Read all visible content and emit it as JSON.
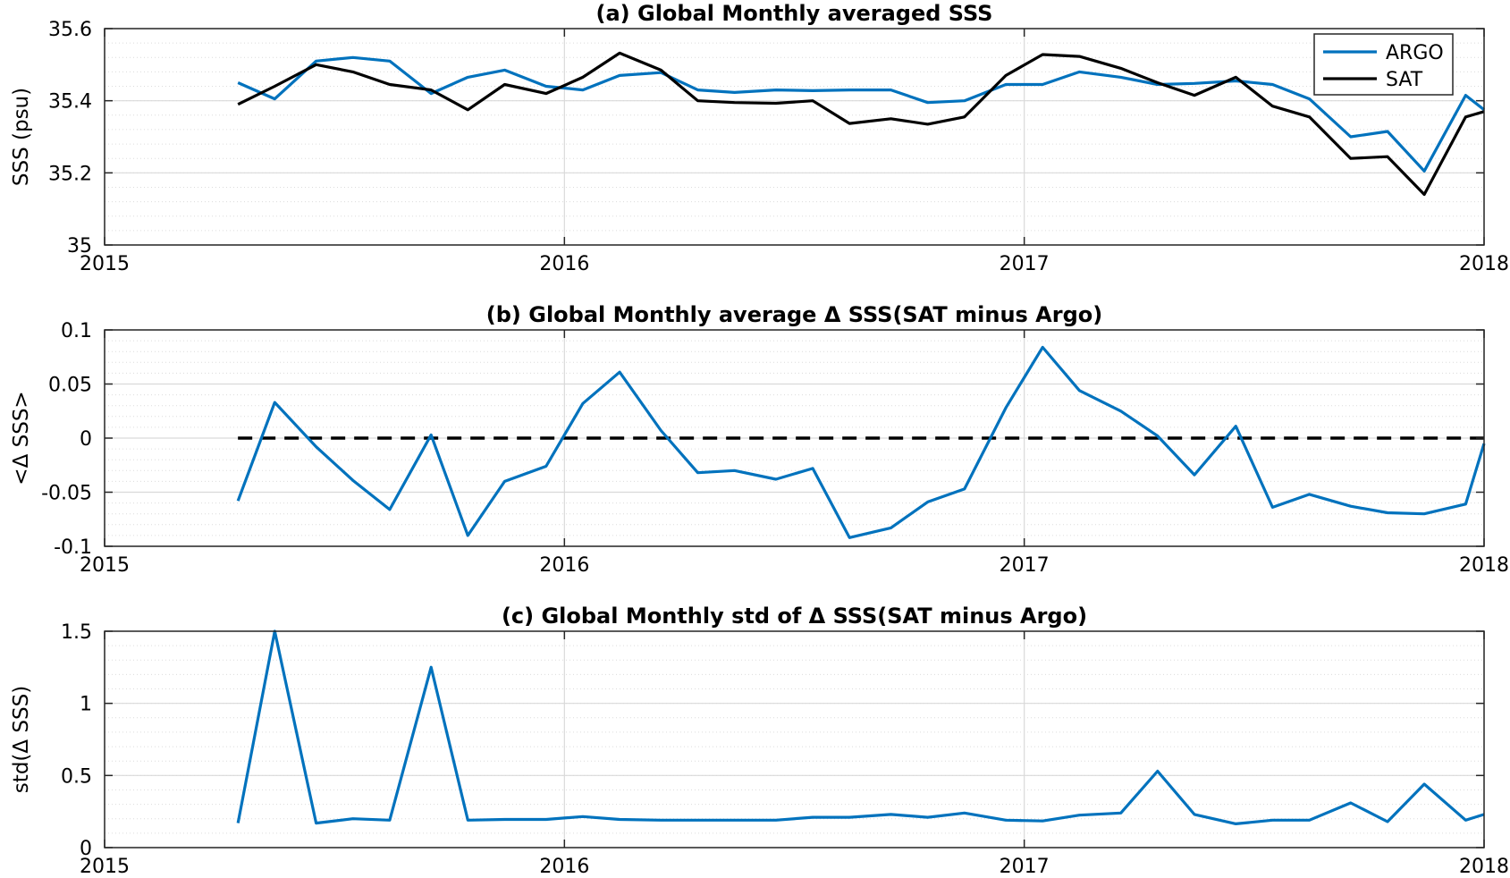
{
  "chart_data": [
    {
      "type": "line",
      "title": "(a) Global Monthly averaged SSS",
      "xlabel": "",
      "ylabel": "SSS (psu)",
      "xlim": [
        2015,
        2018
      ],
      "ylim": [
        35,
        35.6
      ],
      "xticks": [
        "2015",
        "2016",
        "2017",
        "2018"
      ],
      "yticks": [
        "35",
        "35.2",
        "35.4",
        "35.6"
      ],
      "grid": true,
      "legend": "top-right",
      "x": [
        2015.29,
        2015.37,
        2015.46,
        2015.54,
        2015.62,
        2015.71,
        2015.79,
        2015.87,
        2015.96,
        2016.04,
        2016.12,
        2016.21,
        2016.29,
        2016.37,
        2016.46,
        2016.54,
        2016.62,
        2016.71,
        2016.79,
        2016.87,
        2016.96,
        2017.04,
        2017.12,
        2017.21,
        2017.29,
        2017.37,
        2017.46,
        2017.54,
        2017.62,
        2017.71,
        2017.79,
        2017.87,
        2017.96,
        2018.0
      ],
      "series": [
        {
          "name": "ARGO",
          "color": "#0072bd",
          "values": [
            35.45,
            35.405,
            35.51,
            35.52,
            35.51,
            35.42,
            35.465,
            35.485,
            35.44,
            35.43,
            35.47,
            35.478,
            35.43,
            35.423,
            35.43,
            35.428,
            35.43,
            35.43,
            35.395,
            35.4,
            35.445,
            35.445,
            35.48,
            35.465,
            35.445,
            35.448,
            35.455,
            35.445,
            35.405,
            35.3,
            35.315,
            35.205,
            35.415,
            35.375
          ]
        },
        {
          "name": "SAT",
          "color": "#000000",
          "values": [
            35.39,
            35.44,
            35.5,
            35.48,
            35.445,
            35.43,
            35.375,
            35.445,
            35.42,
            35.465,
            35.532,
            35.485,
            35.4,
            35.395,
            35.393,
            35.4,
            35.337,
            35.35,
            35.335,
            35.355,
            35.47,
            35.528,
            35.523,
            35.49,
            35.45,
            35.415,
            35.465,
            35.385,
            35.355,
            35.24,
            35.245,
            35.14,
            35.355,
            35.37
          ]
        }
      ]
    },
    {
      "type": "line",
      "title": "(b) Global Monthly average Δ SSS(SAT minus Argo)",
      "xlabel": "",
      "ylabel": "<Δ SSS>",
      "xlim": [
        2015,
        2018
      ],
      "ylim": [
        -0.1,
        0.1
      ],
      "xticks": [
        "2015",
        "2016",
        "2017",
        "2018"
      ],
      "yticks": [
        "-0.1",
        "-0.05",
        "0",
        "0.05",
        "0.1"
      ],
      "grid": true,
      "reference_line": 0,
      "x": [
        2015.29,
        2015.37,
        2015.46,
        2015.54,
        2015.62,
        2015.71,
        2015.79,
        2015.87,
        2015.96,
        2016.04,
        2016.12,
        2016.21,
        2016.29,
        2016.37,
        2016.46,
        2016.54,
        2016.62,
        2016.71,
        2016.79,
        2016.87,
        2016.96,
        2017.04,
        2017.12,
        2017.21,
        2017.29,
        2017.37,
        2017.46,
        2017.54,
        2017.62,
        2017.71,
        2017.79,
        2017.87,
        2017.96,
        2018.0
      ],
      "series": [
        {
          "color": "#0072bd",
          "values": [
            -0.058,
            0.033,
            -0.008,
            -0.039,
            -0.066,
            0.003,
            -0.09,
            -0.04,
            -0.026,
            0.032,
            0.061,
            0.007,
            -0.032,
            -0.03,
            -0.038,
            -0.028,
            -0.092,
            -0.083,
            -0.059,
            -0.047,
            0.028,
            0.084,
            0.044,
            0.025,
            0.002,
            -0.034,
            0.011,
            -0.064,
            -0.052,
            -0.063,
            -0.069,
            -0.07,
            -0.061,
            -0.005
          ]
        }
      ]
    },
    {
      "type": "line",
      "title": "(c) Global Monthly std of Δ SSS(SAT minus Argo)",
      "xlabel": "",
      "ylabel": "std(Δ SSS)",
      "xlim": [
        2015,
        2018
      ],
      "ylim": [
        0,
        1.5
      ],
      "xticks": [
        "2015",
        "2016",
        "2017",
        "2018"
      ],
      "yticks": [
        "0",
        "0.5",
        "1",
        "1.5"
      ],
      "grid": true,
      "x": [
        2015.29,
        2015.37,
        2015.46,
        2015.54,
        2015.62,
        2015.71,
        2015.79,
        2015.87,
        2015.96,
        2016.04,
        2016.12,
        2016.21,
        2016.29,
        2016.37,
        2016.46,
        2016.54,
        2016.62,
        2016.71,
        2016.79,
        2016.87,
        2016.96,
        2017.04,
        2017.12,
        2017.21,
        2017.29,
        2017.37,
        2017.46,
        2017.54,
        2017.62,
        2017.71,
        2017.79,
        2017.87,
        2017.96,
        2018.0
      ],
      "series": [
        {
          "color": "#0072bd",
          "values": [
            0.17,
            1.5,
            0.17,
            0.2,
            0.19,
            1.25,
            0.19,
            0.195,
            0.195,
            0.215,
            0.195,
            0.19,
            0.19,
            0.19,
            0.19,
            0.21,
            0.21,
            0.23,
            0.21,
            0.24,
            0.19,
            0.185,
            0.225,
            0.24,
            0.53,
            0.23,
            0.165,
            0.19,
            0.19,
            0.31,
            0.18,
            0.44,
            0.19,
            0.23
          ]
        }
      ]
    }
  ]
}
